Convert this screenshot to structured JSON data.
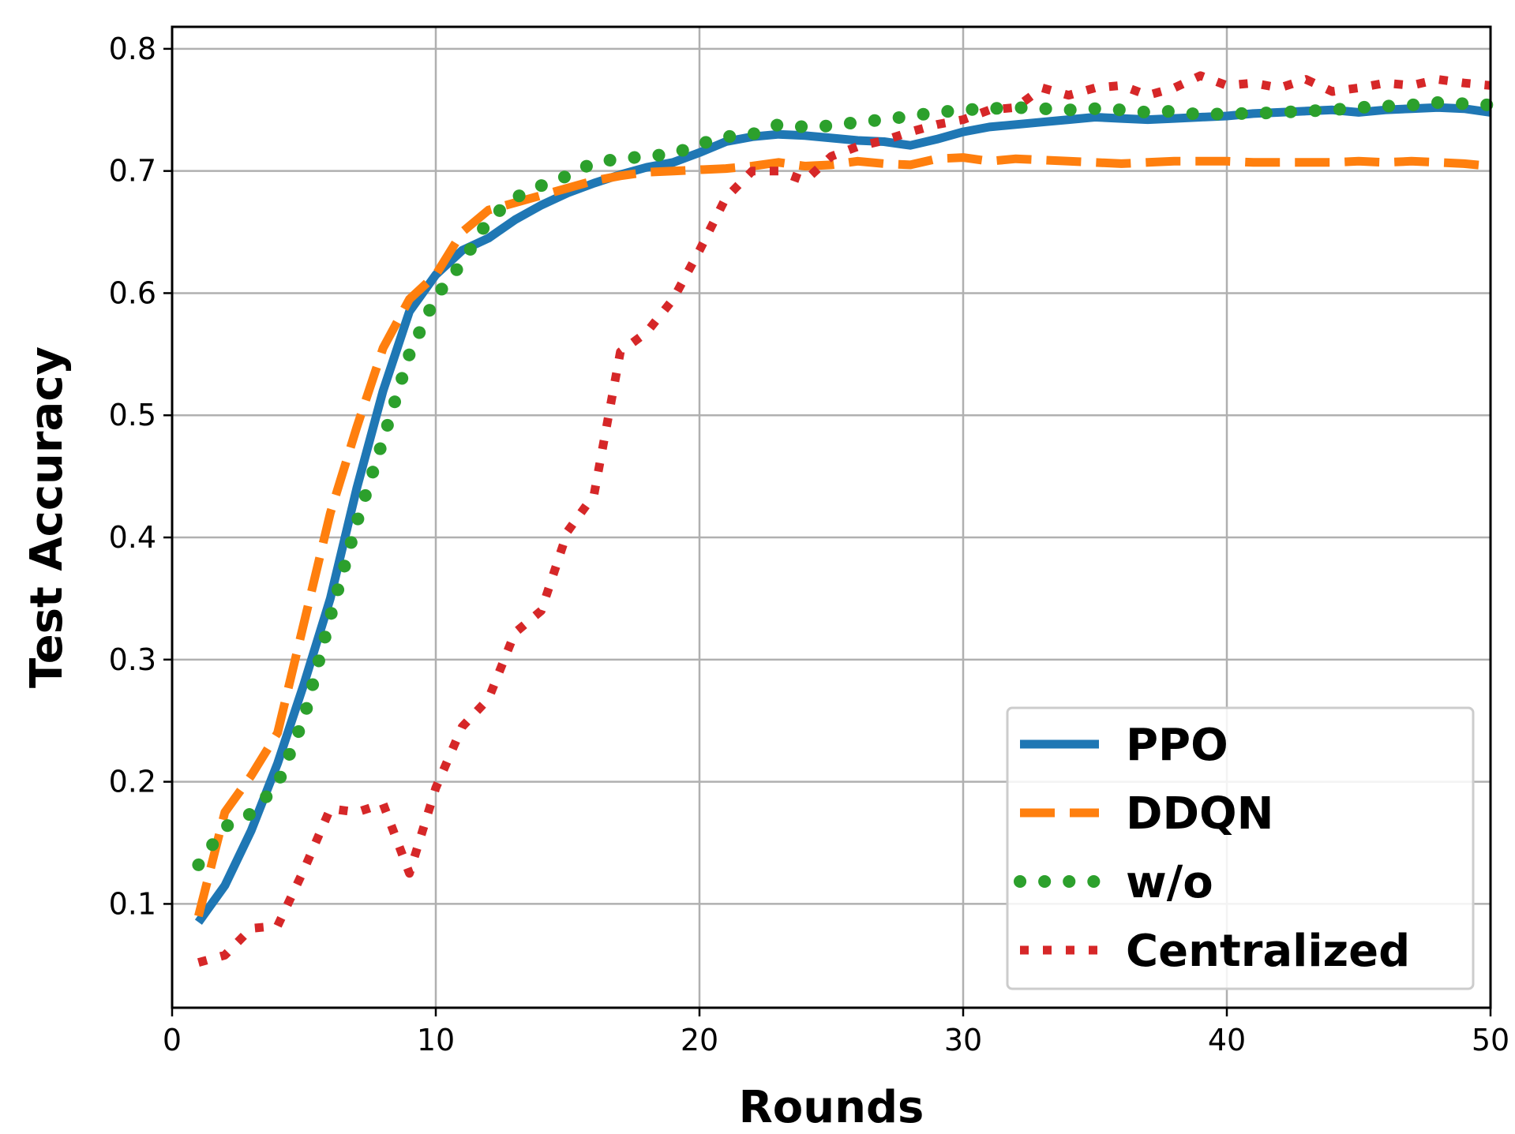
{
  "chart_data": {
    "type": "line",
    "title": "",
    "xlabel": "Rounds",
    "ylabel": "Test Accuracy",
    "xlim": [
      0,
      50
    ],
    "ylim": [
      0.015,
      0.818
    ],
    "xticks": [
      0,
      10,
      20,
      30,
      40,
      50
    ],
    "yticks": [
      0.1,
      0.2,
      0.3,
      0.4,
      0.5,
      0.6,
      0.7,
      0.8
    ],
    "xtick_labels": [
      "0",
      "10",
      "20",
      "30",
      "40",
      "50"
    ],
    "ytick_labels": [
      "0.1",
      "0.2",
      "0.3",
      "0.4",
      "0.5",
      "0.6",
      "0.7",
      "0.8"
    ],
    "grid": true,
    "legend_position": "bottom-right",
    "x": [
      1,
      2,
      3,
      4,
      5,
      6,
      7,
      8,
      9,
      10,
      11,
      12,
      13,
      14,
      15,
      16,
      17,
      18,
      19,
      20,
      21,
      22,
      23,
      24,
      25,
      26,
      27,
      28,
      29,
      30,
      31,
      32,
      33,
      34,
      35,
      36,
      37,
      38,
      39,
      40,
      41,
      42,
      43,
      44,
      45,
      46,
      47,
      48,
      49,
      50
    ],
    "series": [
      {
        "name": "PPO",
        "color": "#1f77b4",
        "style": "solid",
        "values": [
          0.085,
          0.115,
          0.16,
          0.215,
          0.28,
          0.35,
          0.44,
          0.52,
          0.585,
          0.615,
          0.635,
          0.645,
          0.66,
          0.672,
          0.682,
          0.69,
          0.697,
          0.703,
          0.707,
          0.715,
          0.724,
          0.728,
          0.73,
          0.729,
          0.727,
          0.725,
          0.724,
          0.721,
          0.726,
          0.732,
          0.736,
          0.738,
          0.74,
          0.742,
          0.744,
          0.743,
          0.742,
          0.743,
          0.744,
          0.745,
          0.747,
          0.748,
          0.749,
          0.75,
          0.748,
          0.75,
          0.751,
          0.752,
          0.751,
          0.748
        ]
      },
      {
        "name": "DDQN",
        "color": "#ff7f0e",
        "style": "dashed",
        "values": [
          0.09,
          0.175,
          0.205,
          0.24,
          0.33,
          0.42,
          0.49,
          0.555,
          0.595,
          0.615,
          0.65,
          0.668,
          0.674,
          0.68,
          0.686,
          0.692,
          0.696,
          0.699,
          0.7,
          0.701,
          0.702,
          0.704,
          0.707,
          0.704,
          0.705,
          0.708,
          0.706,
          0.705,
          0.71,
          0.711,
          0.708,
          0.71,
          0.709,
          0.708,
          0.707,
          0.706,
          0.707,
          0.708,
          0.708,
          0.708,
          0.707,
          0.707,
          0.707,
          0.707,
          0.708,
          0.707,
          0.708,
          0.707,
          0.706,
          0.704
        ]
      },
      {
        "name": "w/o",
        "color": "#2ca02c",
        "style": "dotted",
        "values": [
          0.132,
          0.163,
          0.174,
          0.198,
          0.252,
          0.335,
          0.412,
          0.48,
          0.55,
          0.597,
          0.625,
          0.66,
          0.678,
          0.688,
          0.696,
          0.707,
          0.71,
          0.712,
          0.714,
          0.722,
          0.728,
          0.73,
          0.738,
          0.736,
          0.737,
          0.74,
          0.742,
          0.745,
          0.748,
          0.75,
          0.751,
          0.752,
          0.751,
          0.75,
          0.751,
          0.75,
          0.748,
          0.749,
          0.746,
          0.747,
          0.747,
          0.748,
          0.749,
          0.75,
          0.752,
          0.753,
          0.754,
          0.756,
          0.755,
          0.754
        ]
      },
      {
        "name": "Centralized",
        "color": "#d62728",
        "style": "dotted",
        "values": [
          0.052,
          0.058,
          0.08,
          0.082,
          0.128,
          0.178,
          0.175,
          0.182,
          0.125,
          0.195,
          0.245,
          0.268,
          0.322,
          0.34,
          0.405,
          0.435,
          0.552,
          0.568,
          0.595,
          0.635,
          0.678,
          0.7,
          0.7,
          0.692,
          0.712,
          0.72,
          0.725,
          0.732,
          0.738,
          0.742,
          0.75,
          0.752,
          0.768,
          0.762,
          0.768,
          0.77,
          0.762,
          0.768,
          0.778,
          0.77,
          0.772,
          0.768,
          0.775,
          0.765,
          0.768,
          0.772,
          0.77,
          0.775,
          0.772,
          0.77
        ]
      }
    ]
  }
}
